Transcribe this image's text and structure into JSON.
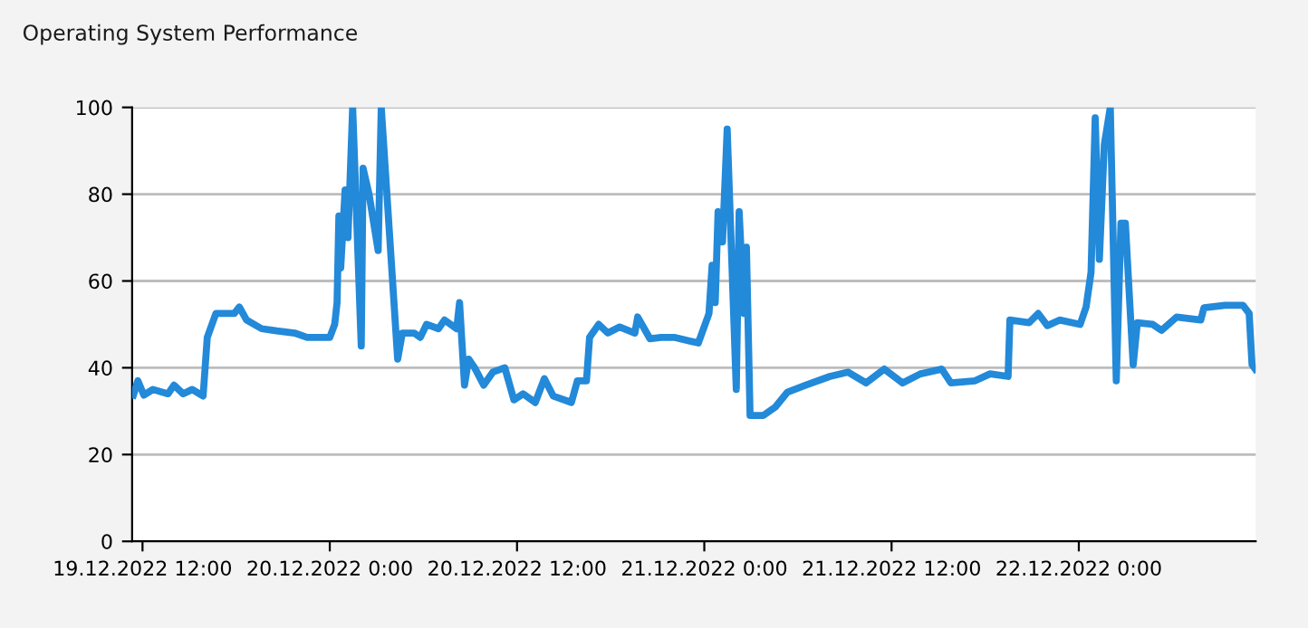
{
  "chart_data": {
    "type": "line",
    "title": "Operating System Performance",
    "x": [
      "2022-12-19T11:25",
      "2022-12-19T11:42",
      "2022-12-19T12:05",
      "2022-12-19T12:40",
      "2022-12-19T13:38",
      "2022-12-19T14:01",
      "2022-12-19T14:36",
      "2022-12-19T15:11",
      "2022-12-19T15:53",
      "2022-12-19T16:09",
      "2022-12-19T16:42",
      "2022-12-19T17:53",
      "2022-12-19T18:12",
      "2022-12-19T18:40",
      "2022-12-19T19:38",
      "2022-12-19T20:36",
      "2022-12-19T21:45",
      "2022-12-19T22:33",
      "2022-12-20T00:00",
      "2022-12-20T00:19",
      "2022-12-20T00:28",
      "2022-12-20T00:35",
      "2022-12-20T00:42",
      "2022-12-20T00:59",
      "2022-12-20T01:10",
      "2022-12-20T01:28",
      "2022-12-20T02:01",
      "2022-12-20T02:08",
      "2022-12-20T02:31",
      "2022-12-20T03:06",
      "2022-12-20T03:18",
      "2022-12-20T04:21",
      "2022-12-20T04:39",
      "2022-12-20T05:25",
      "2022-12-20T05:48",
      "2022-12-20T06:12",
      "2022-12-20T06:58",
      "2022-12-20T07:21",
      "2022-12-20T08:08",
      "2022-12-20T08:19",
      "2022-12-20T08:38",
      "2022-12-20T08:54",
      "2022-12-20T09:17",
      "2022-12-20T09:52",
      "2022-12-20T10:27",
      "2022-12-20T11:13",
      "2022-12-20T11:48",
      "2022-12-20T12:23",
      "2022-12-20T13:10",
      "2022-12-20T13:45",
      "2022-12-20T14:19",
      "2022-12-20T15:29",
      "2022-12-20T15:52",
      "2022-12-20T16:27",
      "2022-12-20T16:39",
      "2022-12-20T17:14",
      "2022-12-20T17:49",
      "2022-12-20T18:35",
      "2022-12-20T19:33",
      "2022-12-20T19:44",
      "2022-12-20T20:31",
      "2022-12-20T21:13",
      "2022-12-20T22:04",
      "2022-12-20T23:37",
      "2022-12-21T00:18",
      "2022-12-21T00:30",
      "2022-12-21T00:42",
      "2022-12-21T00:53",
      "2022-12-21T01:10",
      "2022-12-21T01:28",
      "2022-12-21T02:03",
      "2022-12-21T02:14",
      "2022-12-21T02:33",
      "2022-12-21T02:42",
      "2022-12-21T02:56",
      "2022-12-21T03:47",
      "2022-12-21T04:34",
      "2022-12-21T05:20",
      "2022-12-21T06:30",
      "2022-12-21T08:03",
      "2022-12-21T09:12",
      "2022-12-21T10:22",
      "2022-12-21T11:32",
      "2022-12-21T12:42",
      "2022-12-21T13:51",
      "2022-12-21T15:13",
      "2022-12-21T15:48",
      "2022-12-21T17:21",
      "2022-12-21T18:19",
      "2022-12-21T19:28",
      "2022-12-21T19:35",
      "2022-12-21T20:49",
      "2022-12-21T21:24",
      "2022-12-21T21:59",
      "2022-12-21T22:46",
      "2022-12-22T00:05",
      "2022-12-22T00:28",
      "2022-12-22T00:47",
      "2022-12-22T01:03",
      "2022-12-22T01:19",
      "2022-12-22T01:38",
      "2022-12-22T02:01",
      "2022-12-22T02:24",
      "2022-12-22T02:42",
      "2022-12-22T02:59",
      "2022-12-22T03:29",
      "2022-12-22T03:45",
      "2022-12-22T04:44",
      "2022-12-22T05:18",
      "2022-12-22T06:16",
      "2022-12-22T07:49",
      "2022-12-22T08:01",
      "2022-12-22T09:22",
      "2022-12-22T10:31",
      "2022-12-22T10:55",
      "2022-12-22T11:06",
      "2022-12-22T11:18"
    ],
    "series": [
      {
        "color": "#2389d9",
        "values": [
          33.7,
          37,
          33.7,
          35,
          34,
          36,
          34,
          35,
          33.5,
          47,
          52.5,
          52.5,
          54,
          51,
          49,
          48.5,
          48,
          47,
          47,
          50,
          55,
          75,
          63,
          81,
          70,
          100,
          45,
          86,
          80,
          67,
          100,
          42,
          48,
          48,
          47,
          50,
          49,
          51,
          49,
          55,
          36,
          42,
          40,
          36,
          39,
          40,
          32.6,
          34,
          32,
          37.5,
          33.5,
          32,
          37,
          37,
          47,
          50,
          48,
          49.4,
          48,
          51.7,
          46.7,
          47,
          47,
          45.7,
          52.5,
          63.6,
          55,
          76,
          69,
          95,
          35,
          76,
          52.5,
          67.8,
          29,
          29,
          31,
          34.4,
          36,
          38,
          39,
          36.5,
          39.7,
          36.5,
          38.6,
          39.7,
          36.5,
          37,
          38.6,
          38,
          51,
          50.4,
          52.5,
          49.7,
          51,
          50,
          54,
          62,
          97.6,
          65,
          91.4,
          100,
          37,
          73.3,
          73.3,
          40.7,
          50.4,
          50,
          48.6,
          51.7,
          51,
          53.8,
          54.4,
          54.4,
          52.5,
          40.7,
          39.7
        ]
      }
    ],
    "xlim": [
      "2022-12-19T11:20",
      "2022-12-22T11:20"
    ],
    "xticks": [
      {
        "value": "2022-12-19T12:00",
        "label": "19.12.2022 12:00"
      },
      {
        "value": "2022-12-20T00:00",
        "label": "20.12.2022 0:00"
      },
      {
        "value": "2022-12-20T12:00",
        "label": "20.12.2022 12:00"
      },
      {
        "value": "2022-12-21T00:00",
        "label": "21.12.2022 0:00"
      },
      {
        "value": "2022-12-21T12:00",
        "label": "21.12.2022 12:00"
      },
      {
        "value": "2022-12-22T00:00",
        "label": "22.12.2022 0:00"
      }
    ],
    "ylim": [
      0,
      100
    ],
    "yticks": [
      0,
      20,
      40,
      60,
      80,
      100
    ],
    "grid": "y",
    "line_style": "solid"
  }
}
